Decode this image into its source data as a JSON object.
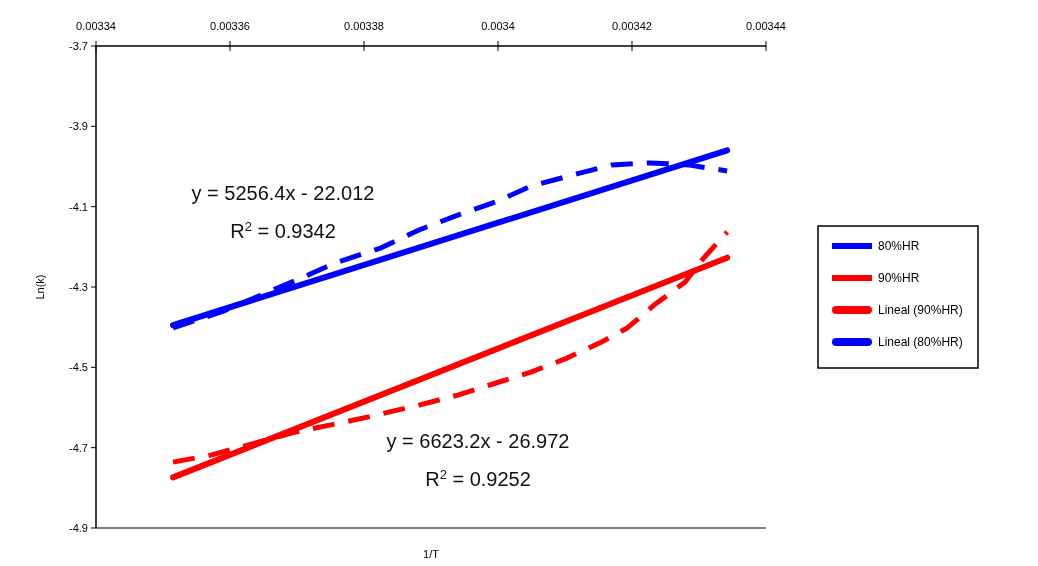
{
  "chart_data": {
    "type": "line",
    "xlabel": "1/T",
    "ylabel": "Ln(k)",
    "xlim": [
      0.00334,
      0.00344
    ],
    "xticks": [
      0.00334,
      0.00336,
      0.00338,
      0.0034,
      0.00342,
      0.00344
    ],
    "ylim": [
      -4.9,
      -3.7
    ],
    "yticks": [
      -3.7,
      -3.9,
      -4.1,
      -4.3,
      -4.5,
      -4.7,
      -4.9
    ],
    "grid": false,
    "legend": "right",
    "marker": "none",
    "series": [
      {
        "name": "80%HR",
        "color": "#0000ff",
        "line_style": "dashed",
        "x": [
          0.0033515,
          0.003359,
          0.0033699,
          0.0033757,
          0.0033825,
          0.0033882,
          0.003394,
          0.0033997,
          0.0034049,
          0.0034112,
          0.003417,
          0.0034227,
          0.0034284,
          0.0034342
        ],
        "values": [
          -4.402,
          -4.36,
          -4.283,
          -4.24,
          -4.203,
          -4.158,
          -4.121,
          -4.088,
          -4.049,
          -4.021,
          -3.996,
          -3.991,
          -3.996,
          -4.011
        ]
      },
      {
        "name": "90%HR",
        "color": "#ff0000",
        "line_style": "dashed",
        "x": [
          0.0033515,
          0.0033573,
          0.0033693,
          0.0033757,
          0.0033813,
          0.0033882,
          0.003394,
          0.0033997,
          0.0034049,
          0.00341,
          0.0034152,
          0.0034193,
          0.0034233,
          0.0034279,
          0.0034307,
          0.0034342
        ],
        "values": [
          -4.736,
          -4.718,
          -4.663,
          -4.641,
          -4.621,
          -4.594,
          -4.569,
          -4.539,
          -4.512,
          -4.479,
          -4.439,
          -4.402,
          -4.345,
          -4.288,
          -4.228,
          -4.163
        ]
      },
      {
        "name": "Lineal (90%HR)",
        "color": "#ff0000",
        "line_style": "solid",
        "x": [
          0.0033515,
          0.0034342
        ],
        "values": [
          -4.774,
          -4.227
        ]
      },
      {
        "name": "Lineal (80%HR)",
        "color": "#0000ff",
        "line_style": "solid",
        "x": [
          0.0033515,
          0.0034342
        ],
        "values": [
          -4.395,
          -3.96
        ]
      }
    ],
    "annotations": [
      "y = 5256.4x - 22.012",
      "R$^{2}$ = 0.9342",
      "y = 6623.2x - 26.972",
      "R$^{2}$ = 0.9252"
    ]
  }
}
